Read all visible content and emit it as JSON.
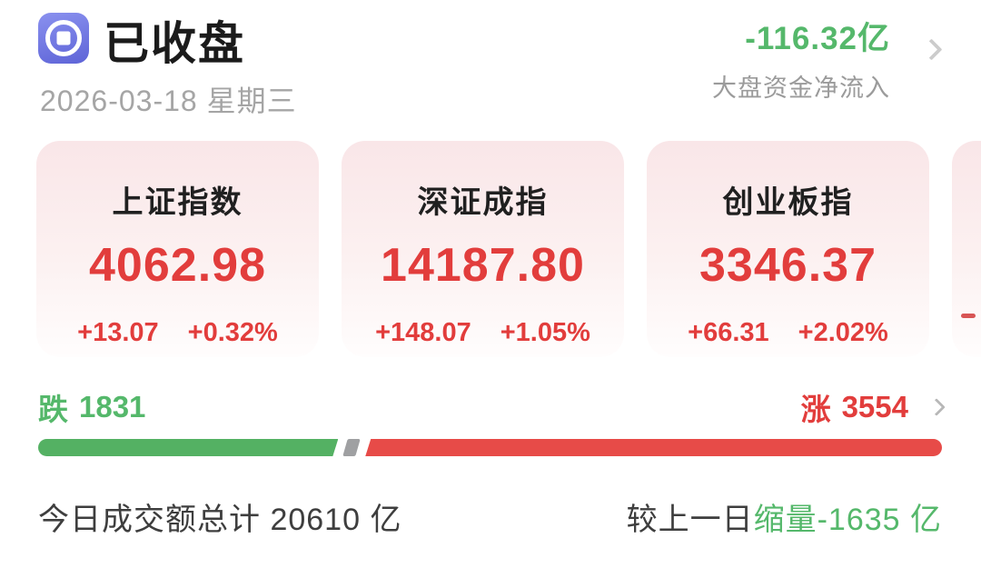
{
  "header": {
    "status": "已收盘",
    "date": "2026-03-18 星期三",
    "net_flow_value": "-116.32亿",
    "net_flow_label": "大盘资金净流入",
    "icon": "coin-icon"
  },
  "indices": [
    {
      "name": "上证指数",
      "value": "4062.98",
      "change": "+13.07",
      "change_pct": "+0.32%"
    },
    {
      "name": "深证成指",
      "value": "14187.80",
      "change": "+148.07",
      "change_pct": "+1.05%"
    },
    {
      "name": "创业板指",
      "value": "3346.37",
      "change": "+66.31",
      "change_pct": "+2.02%"
    }
  ],
  "breadth": {
    "down_label": "跌",
    "down_count": "1831",
    "up_label": "涨",
    "up_count": "3554",
    "down_bar_percent": 33.2,
    "separator_percent": 1.4
  },
  "footer": {
    "turnover_text": "今日成交额总计 20610 亿",
    "compare_label": "较上一日",
    "compare_value": "缩量-1635 亿"
  },
  "colors": {
    "green": "#55b86b",
    "red": "#e23d3c",
    "bar_green": "#54b163",
    "bar_red": "#e74b48",
    "separator_gray": "#9fa0a2"
  }
}
